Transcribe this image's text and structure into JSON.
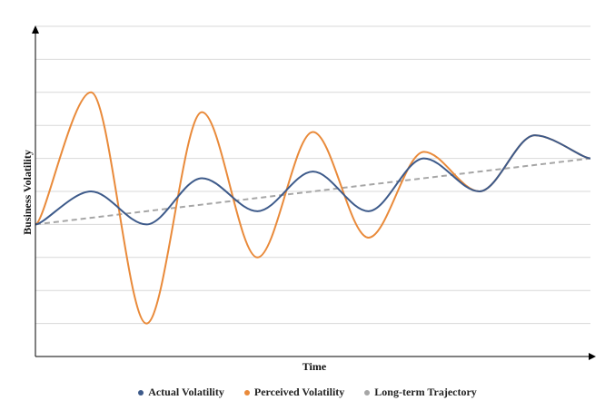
{
  "chart_data": {
    "type": "line",
    "xlabel": "Time",
    "ylabel": "Business Volatility",
    "x": [
      0,
      1,
      2,
      3,
      4,
      5,
      6,
      7,
      8,
      9,
      10
    ],
    "xlim": [
      0,
      10
    ],
    "ylim": [
      0,
      10
    ],
    "grid": true,
    "legend_position": "bottom",
    "series": [
      {
        "name": "Actual Volatility",
        "color": "#3d5a8a",
        "style": "solid",
        "values": [
          4.0,
          5.0,
          4.0,
          5.4,
          4.4,
          5.6,
          4.4,
          6.0,
          5.0,
          6.7,
          6.0
        ]
      },
      {
        "name": "Perceived Volatility",
        "color": "#e98a3a",
        "style": "solid",
        "values": [
          4.0,
          8.0,
          1.0,
          7.4,
          3.0,
          6.8,
          3.6,
          6.2,
          5.0,
          6.7,
          6.0
        ]
      },
      {
        "name": "Long-term Trajectory",
        "color": "#a6a6a6",
        "style": "dashed",
        "values": [
          4.0,
          4.2,
          4.4,
          4.6,
          4.8,
          5.0,
          5.2,
          5.4,
          5.6,
          5.8,
          6.0
        ]
      }
    ]
  }
}
